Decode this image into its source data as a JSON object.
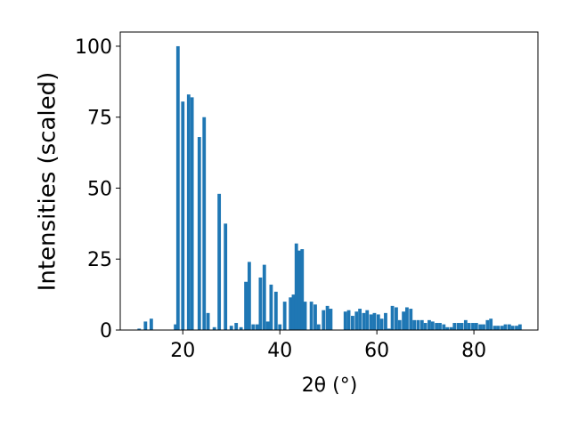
{
  "chart_data": {
    "type": "bar",
    "x_label": "2θ (°)",
    "y_label": "Intensities (scaled)",
    "color": "#1f77b4",
    "x": [
      11,
      12.3,
      13.5,
      18.5,
      19,
      20,
      21.2,
      21.9,
      23.4,
      24.4,
      25.2,
      26.5,
      27.5,
      28.8,
      30,
      31,
      32,
      33,
      33.7,
      34.5,
      35.3,
      36,
      36.8,
      37.5,
      38.2,
      39.2,
      40,
      41,
      42.2,
      42.8,
      43.4,
      44,
      44.6,
      45.2,
      46.5,
      47.3,
      48,
      49,
      49.8,
      50.5,
      53.5,
      54.2,
      55,
      55.8,
      56.5,
      57.3,
      58,
      58.8,
      59.5,
      60.3,
      61,
      61.8,
      62.5,
      63.2,
      64,
      64.7,
      65.5,
      66.2,
      67,
      67.7,
      68.5,
      69.3,
      70,
      70.8,
      71.5,
      72.3,
      73,
      73.8,
      74.5,
      75.3,
      76,
      76.8,
      77.5,
      78.3,
      79,
      79.8,
      80.5,
      81.3,
      82,
      82.8,
      83.5,
      84.3,
      85,
      85.8,
      86.5,
      87.3,
      88,
      88.8,
      89.5
    ],
    "values": [
      0.5,
      3,
      4,
      2,
      100,
      80.5,
      83,
      82,
      68,
      75,
      6,
      1,
      48,
      37.5,
      1.5,
      2.5,
      1,
      17,
      24,
      2,
      2,
      18.5,
      23,
      3,
      16,
      13.5,
      2,
      10,
      11.5,
      12.5,
      30.5,
      28,
      28.5,
      10,
      10,
      9,
      2,
      7,
      8.5,
      7.5,
      6.5,
      7,
      5,
      6.5,
      7.5,
      6,
      7,
      5.5,
      6,
      5.5,
      4,
      6,
      0.5,
      8.5,
      8,
      3.5,
      6.5,
      8,
      7.5,
      3.5,
      3.5,
      3.5,
      2.5,
      3.5,
      3,
      2.5,
      2.5,
      2,
      1,
      1,
      2.5,
      2.5,
      2.5,
      3.5,
      2.5,
      2.5,
      2.5,
      2,
      2,
      3.5,
      4,
      1.5,
      1.5,
      1.5,
      2,
      2,
      1.5,
      1.5,
      2
    ],
    "xlim": [
      7.1,
      93.2
    ],
    "ylim": [
      0,
      105
    ],
    "xticks": [
      20,
      40,
      60,
      80
    ],
    "yticks": [
      0,
      25,
      50,
      75,
      100
    ]
  }
}
